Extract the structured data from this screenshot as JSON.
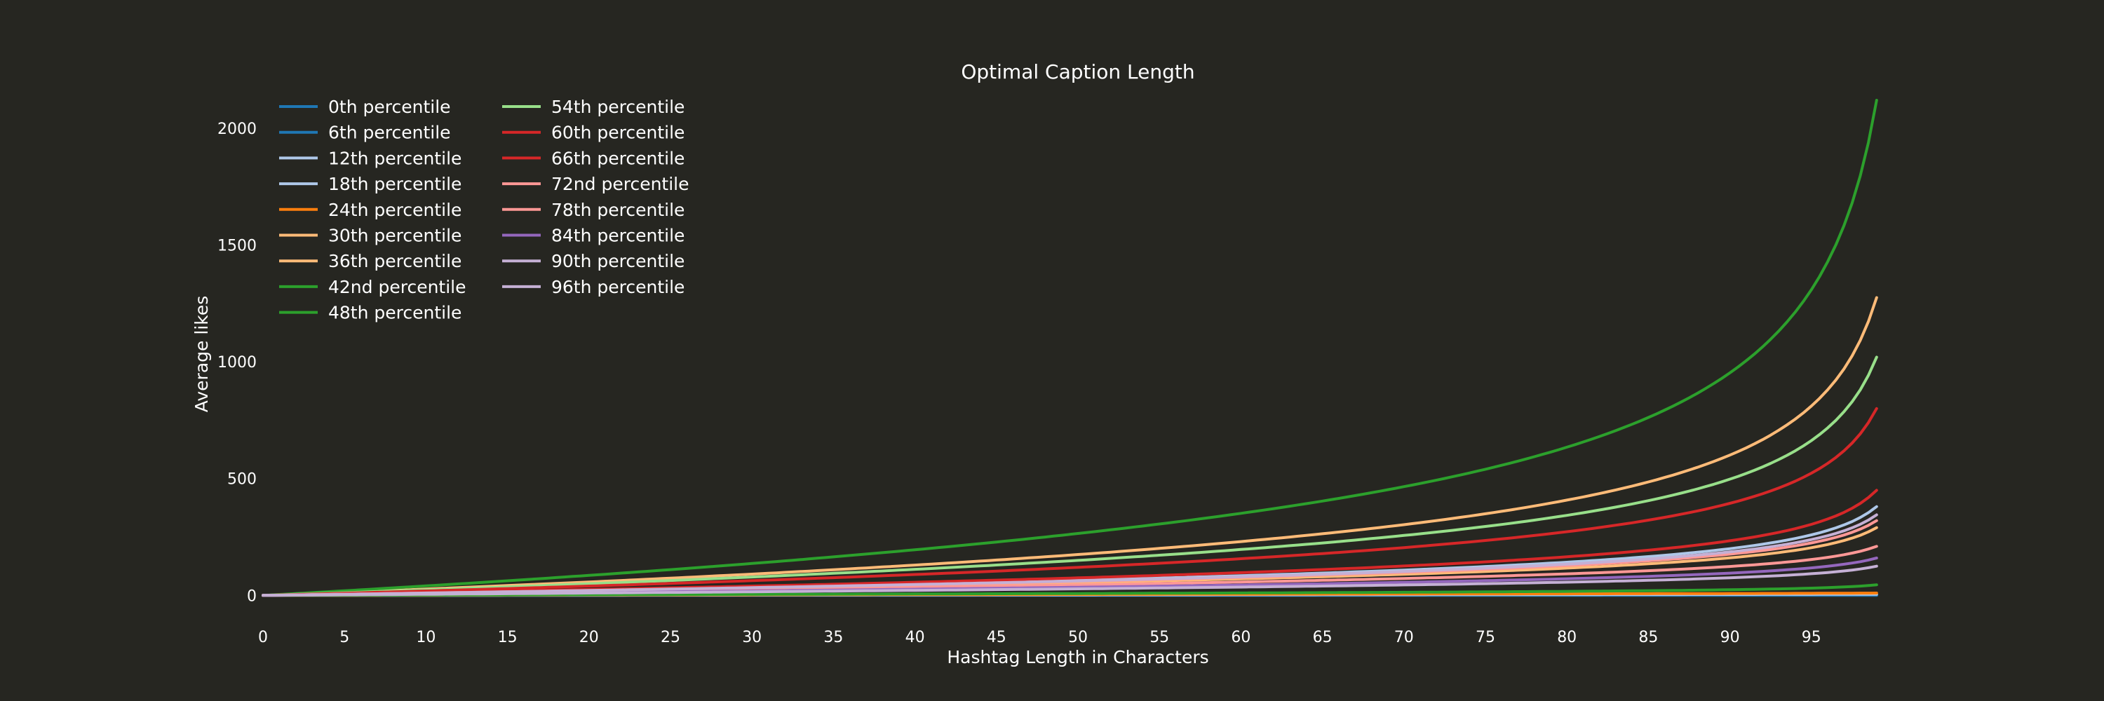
{
  "chart_data": {
    "type": "line",
    "title": "Optimal Caption Length",
    "xlabel": "Hashtag Length in Characters",
    "ylabel": "Average likes",
    "xlim": [
      0,
      100
    ],
    "ylim": [
      -20,
      2150
    ],
    "xticks": [
      0,
      5,
      10,
      15,
      20,
      25,
      30,
      35,
      40,
      45,
      50,
      55,
      60,
      65,
      70,
      75,
      80,
      85,
      90,
      95
    ],
    "yticks": [
      0,
      500,
      1000,
      1500,
      2000
    ],
    "grid": false,
    "legend_position": "top-left",
    "legend_columns": 2,
    "series": [
      {
        "name": "0th percentile",
        "color": "#1f77b4",
        "end_value": 0,
        "mid_value": 0
      },
      {
        "name": "6th percentile",
        "color": "#1f77b4",
        "end_value": 2,
        "mid_value": 1
      },
      {
        "name": "12th percentile",
        "color": "#aec7e8",
        "end_value": 5,
        "mid_value": 2
      },
      {
        "name": "18th percentile",
        "color": "#aec7e8",
        "end_value": 380,
        "mid_value": 65
      },
      {
        "name": "24th percentile",
        "color": "#ff7f0e",
        "end_value": 10,
        "mid_value": 4
      },
      {
        "name": "30th percentile",
        "color": "#ffbb78",
        "end_value": 290,
        "mid_value": 55
      },
      {
        "name": "36th percentile",
        "color": "#ffbb78",
        "end_value": 1275,
        "mid_value": 175
      },
      {
        "name": "42nd percentile",
        "color": "#2ca02c",
        "end_value": 45,
        "mid_value": 8
      },
      {
        "name": "48th percentile",
        "color": "#2ca02c",
        "end_value": 2120,
        "mid_value": 265
      },
      {
        "name": "54th percentile",
        "color": "#98df8a",
        "end_value": 1020,
        "mid_value": 150
      },
      {
        "name": "60th percentile",
        "color": "#d62728",
        "end_value": 800,
        "mid_value": 120
      },
      {
        "name": "66th percentile",
        "color": "#d62728",
        "end_value": 450,
        "mid_value": 75
      },
      {
        "name": "72nd percentile",
        "color": "#ff9896",
        "end_value": 320,
        "mid_value": 60
      },
      {
        "name": "78th percentile",
        "color": "#ff9896",
        "end_value": 210,
        "mid_value": 45
      },
      {
        "name": "84th percentile",
        "color": "#9467bd",
        "end_value": 160,
        "mid_value": 35
      },
      {
        "name": "90th percentile",
        "color": "#c5b0d5",
        "end_value": 125,
        "mid_value": 28
      },
      {
        "name": "96th percentile",
        "color": "#c5b0d5",
        "end_value": 345,
        "mid_value": 62
      }
    ]
  }
}
